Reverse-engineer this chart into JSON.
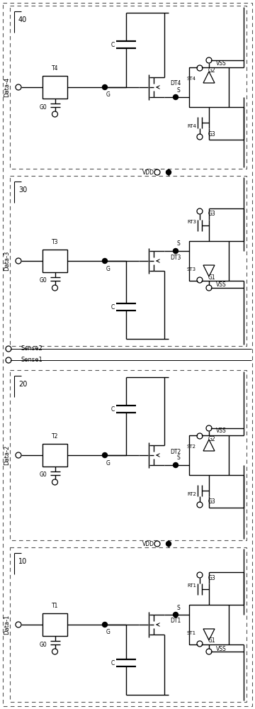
{
  "fig_w": 3.6,
  "fig_h": 10.0,
  "dpi": 100,
  "blocks": [
    {
      "label": "40",
      "data_label": "Data-4",
      "T": "T4",
      "DT": "DT4",
      "ST": "ST4",
      "RT": "RT4",
      "cap_up": true,
      "diode_top": true,
      "Gtop": "G2",
      "Gbot": "G3"
    },
    {
      "label": "30",
      "data_label": "Data-3",
      "T": "T3",
      "DT": "DT3",
      "ST": "ST3",
      "RT": "RT3",
      "cap_up": false,
      "diode_top": false,
      "Gtop": "G1",
      "Gbot": "G3"
    },
    {
      "label": "20",
      "data_label": "Data-2",
      "T": "T2",
      "DT": "DT2",
      "ST": "ST2",
      "RT": "RT2",
      "cap_up": true,
      "diode_top": true,
      "Gtop": "G2",
      "Gbot": "G3"
    },
    {
      "label": "10",
      "data_label": "Data-1",
      "T": "T1",
      "DT": "DT1",
      "ST": "ST1",
      "RT": "RT1",
      "cap_up": false,
      "diode_top": false,
      "Gtop": "G1",
      "Gbot": "G3"
    }
  ],
  "vdd_between_label": "VDD",
  "sense1_label": "Sense1",
  "sense2_label": "Sense2"
}
